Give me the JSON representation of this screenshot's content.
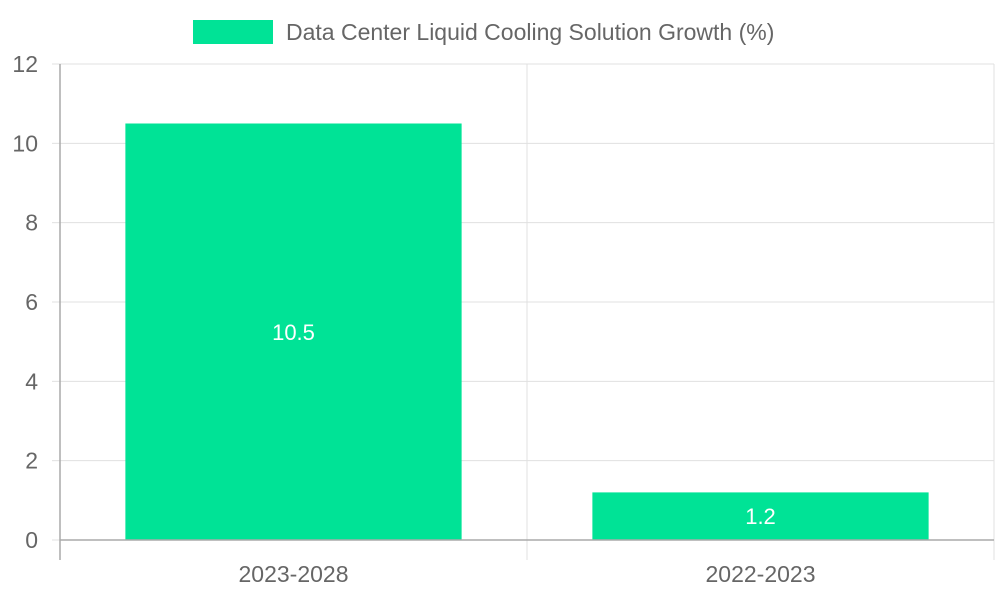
{
  "chart_data": {
    "type": "bar",
    "title": "",
    "xlabel": "",
    "ylabel": "",
    "categories": [
      "2023-2028",
      "2022-2023"
    ],
    "series": [
      {
        "name": "Data Center Liquid Cooling Solution Growth (%)",
        "values": [
          10.5,
          1.2
        ],
        "color": "#00e396"
      }
    ],
    "ylim": [
      0,
      12
    ],
    "y_ticks": [
      0,
      2,
      4,
      6,
      8,
      10,
      12
    ],
    "grid": true,
    "legend_position": "top-center",
    "data_labels_color": "#ffffff"
  }
}
